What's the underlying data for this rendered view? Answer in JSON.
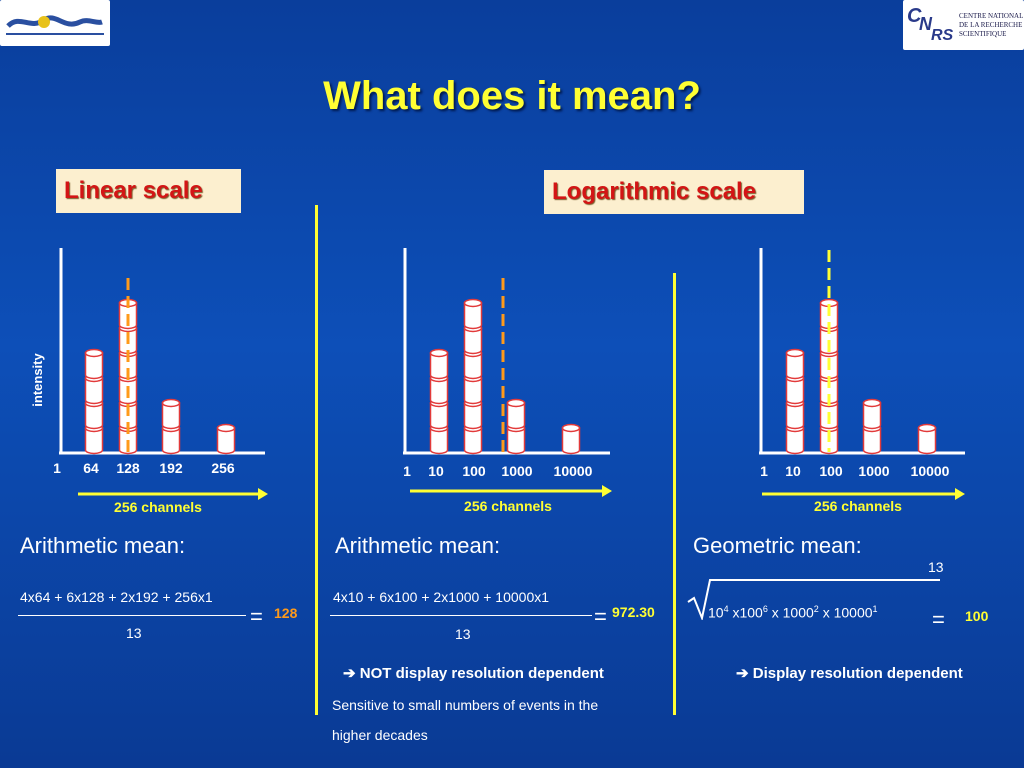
{
  "title": "What does it mean?",
  "logos": {
    "right_lines": [
      "CENTRE NATIONAL",
      "DE LA RECHERCHE",
      "SCIENTIFIQUE"
    ]
  },
  "linear_scale_label": "Linear scale",
  "log_scale_label": "Logarithmic scale",
  "y_axis_label": "intensity",
  "colors": {
    "background": "#0d4fb8",
    "title": "#ffff33",
    "divider": "#ffff33",
    "mean_line_linear": "#ff9a1a",
    "mean_line_geometric": "#ffff33",
    "cylinder_fill": "#ffffff",
    "cylinder_edge": "#e23a3a"
  },
  "chart_data": [
    {
      "type": "bar",
      "scale": "linear",
      "xlabel": "256 channels",
      "ylabel": "intensity",
      "categories": [
        "1",
        "64",
        "128",
        "192",
        "256"
      ],
      "values": [
        0,
        4,
        6,
        2,
        1
      ],
      "mean_marker": 128
    },
    {
      "type": "bar",
      "scale": "log",
      "xlabel": "256 channels",
      "categories": [
        "1",
        "10",
        "100",
        "1000",
        "10000"
      ],
      "values": [
        0,
        4,
        6,
        2,
        1
      ],
      "mean_marker": 972.3
    },
    {
      "type": "bar",
      "scale": "log",
      "xlabel": "256 channels",
      "categories": [
        "1",
        "10",
        "100",
        "1000",
        "10000"
      ],
      "values": [
        0,
        4,
        6,
        2,
        1
      ],
      "mean_marker": 100
    }
  ],
  "sections": {
    "linear": {
      "mean_label": "Arithmetic mean:",
      "numerator": "4x64 + 6x128 + 2x192 + 256x1",
      "denominator": "13",
      "equals": "=",
      "result": "128"
    },
    "log_arith": {
      "mean_label": "Arithmetic mean:",
      "numerator": "4x10 + 6x100 + 2x1000 + 10000x1",
      "denominator": "13",
      "equals": "=",
      "result": "972.30",
      "note": "➔ NOT display resolution dependent",
      "note2_line1": "Sensitive to small numbers of events in the",
      "note2_line2": "higher decades"
    },
    "log_geo": {
      "mean_label": "Geometric mean:",
      "root_index": "13",
      "terms": [
        {
          "base": "10",
          "exp": "4"
        },
        {
          "base": " x100",
          "exp": "6"
        },
        {
          "base": " x 1000",
          "exp": "2"
        },
        {
          "base": " x 10000",
          "exp": "1"
        }
      ],
      "equals": "=",
      "result": "100",
      "note": "➔ Display resolution dependent"
    }
  }
}
